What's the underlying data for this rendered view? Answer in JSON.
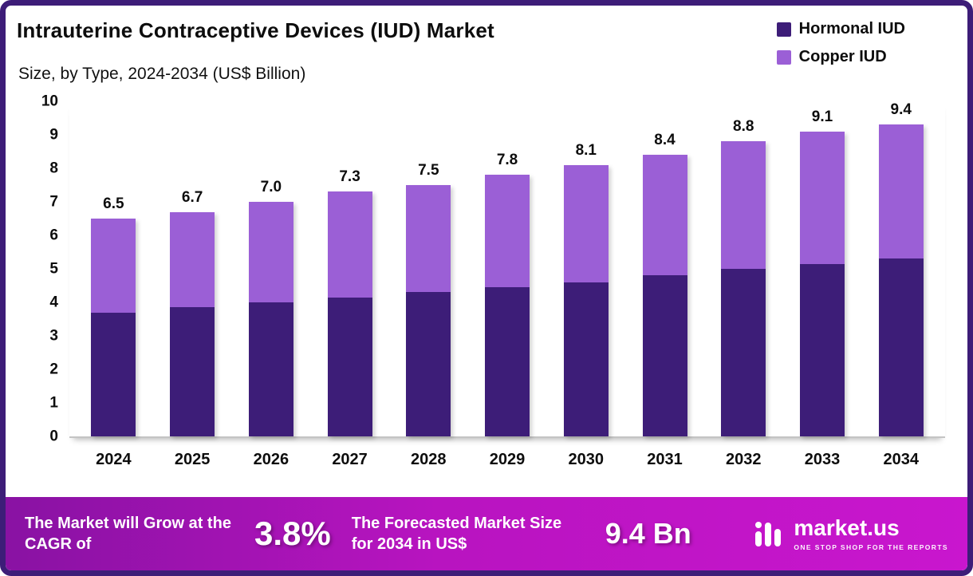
{
  "header": {
    "title": "Intrauterine Contraceptive Devices (IUD) Market",
    "subtitle": "Size, by Type, 2024-2034 (US$ Billion)"
  },
  "legend": [
    {
      "label": "Hormonal IUD",
      "color": "#3d1d78"
    },
    {
      "label": "Copper IUD",
      "color": "#9b5fd6"
    }
  ],
  "chart_data": {
    "type": "bar",
    "stacked": true,
    "title": "Intrauterine Contraceptive Devices (IUD) Market Size, by Type, 2024-2034 (US$ Billion)",
    "categories": [
      "2024",
      "2025",
      "2026",
      "2027",
      "2028",
      "2029",
      "2030",
      "2031",
      "2032",
      "2033",
      "2034"
    ],
    "series": [
      {
        "name": "Hormonal IUD",
        "color": "#3d1d78",
        "values": [
          3.7,
          3.85,
          4.0,
          4.15,
          4.3,
          4.45,
          4.6,
          4.8,
          5.0,
          5.15,
          5.35
        ]
      },
      {
        "name": "Copper IUD",
        "color": "#9b5fd6",
        "values": [
          2.8,
          2.85,
          3.0,
          3.15,
          3.2,
          3.35,
          3.5,
          3.6,
          3.8,
          3.95,
          4.05
        ]
      }
    ],
    "totals_labels": [
      "6.5",
      "6.7",
      "7.0",
      "7.3",
      "7.5",
      "7.8",
      "8.1",
      "8.4",
      "8.8",
      "9.1",
      "9.4"
    ],
    "xlabel": "",
    "ylabel": "",
    "ylim": [
      0,
      10
    ],
    "yticks": [
      0,
      1,
      2,
      3,
      4,
      5,
      6,
      7,
      8,
      9,
      10
    ],
    "grid": false,
    "legend_position": "top-right"
  },
  "footer": {
    "cagr_text": "The Market will Grow at the CAGR of",
    "cagr_value": "3.8%",
    "forecast_text": "The Forecasted Market Size for 2034 in US$",
    "forecast_value": "9.4 Bn",
    "brand": "market.us",
    "brand_tagline": "ONE STOP SHOP FOR THE REPORTS"
  }
}
